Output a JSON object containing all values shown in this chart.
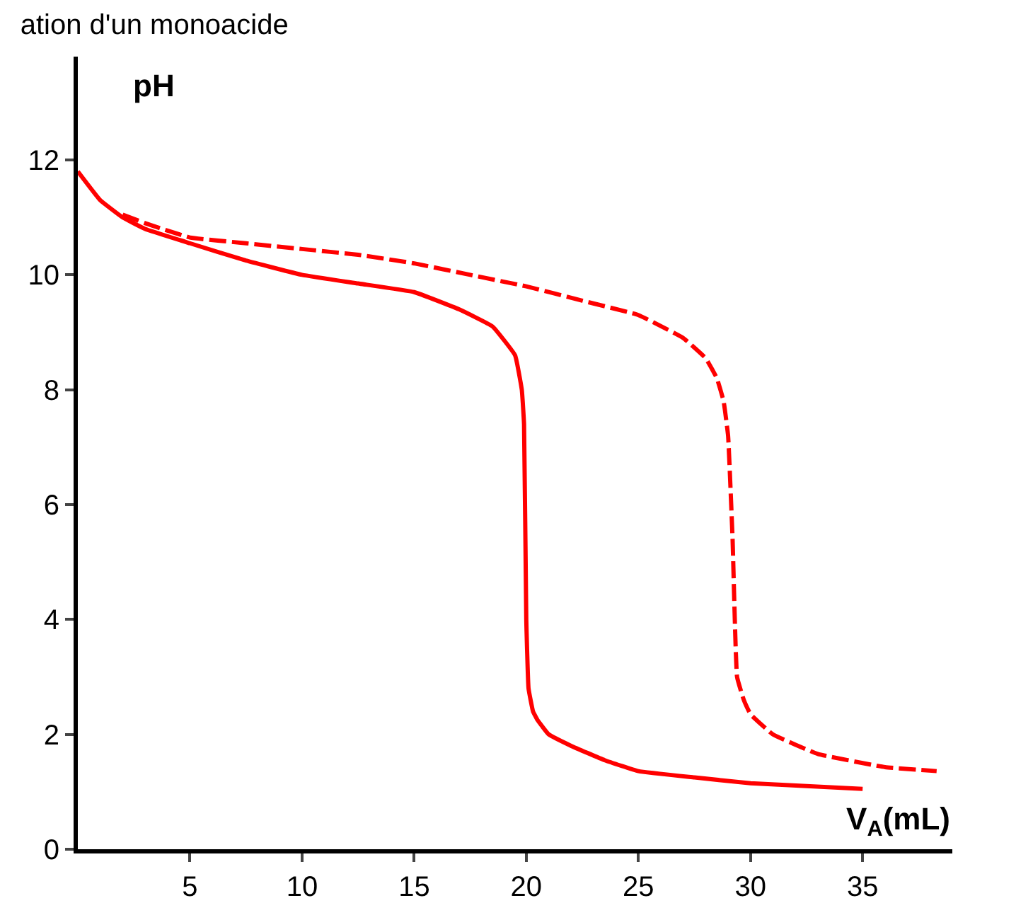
{
  "chart_data": {
    "type": "line",
    "title": "ation d'un monoacide",
    "xlabel": "V$_{A}$(mL)",
    "ylabel": "pH",
    "xlim": [
      0,
      39
    ],
    "ylim": [
      0,
      13.8
    ],
    "xticks": [
      5,
      10,
      15,
      20,
      25,
      30,
      35
    ],
    "yticks": [
      0,
      2,
      4,
      6,
      8,
      10,
      12
    ],
    "series": [
      {
        "color": "#ff0000",
        "line_style": "solid",
        "x": [
          0,
          1,
          2,
          3,
          5,
          7.5,
          10,
          12.5,
          15,
          17,
          18.5,
          19.5,
          19.8,
          19.9,
          20,
          20.1,
          20.3,
          20.5,
          21,
          22,
          23.5,
          25,
          27.5,
          30,
          32.5,
          35
        ],
        "values": [
          11.8,
          11.3,
          11.0,
          10.8,
          10.55,
          10.25,
          10.0,
          9.85,
          9.7,
          9.4,
          9.1,
          8.6,
          8.0,
          7.4,
          4.0,
          2.8,
          2.4,
          2.25,
          2.0,
          1.8,
          1.55,
          1.36,
          1.25,
          1.15,
          1.1,
          1.05
        ]
      },
      {
        "color": "#ff0000",
        "line_style": "dashed",
        "x": [
          2,
          3,
          5,
          7.5,
          10,
          12.5,
          15,
          17.5,
          20,
          22.5,
          25,
          27,
          28,
          28.5,
          28.8,
          29,
          29.2,
          29.4,
          29.7,
          30,
          31,
          33,
          36,
          38.3
        ],
        "values": [
          11.05,
          10.9,
          10.65,
          10.55,
          10.45,
          10.35,
          10.2,
          10.0,
          9.8,
          9.55,
          9.3,
          8.9,
          8.55,
          8.2,
          7.8,
          7.2,
          5.4,
          3.0,
          2.6,
          2.35,
          2.0,
          1.66,
          1.43,
          1.36
        ]
      }
    ]
  }
}
